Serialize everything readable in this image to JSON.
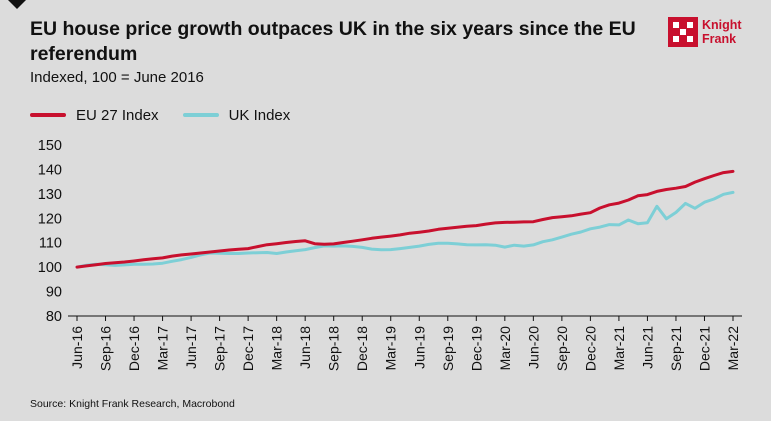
{
  "header": {
    "title": "EU house price growth outpaces UK in the six years since the EU referendum",
    "subtitle": "Indexed, 100 = June 2016"
  },
  "logo": {
    "line1": "Knight",
    "line2": "Frank",
    "color": "#c8102e"
  },
  "footer": {
    "source": "Source: Knight Frank Research, Macrobond"
  },
  "chart_data": {
    "type": "line",
    "title": "EU house price growth outpaces UK in the six years since the EU referendum",
    "subtitle": "Indexed, 100 = June 2016",
    "xlabel": "",
    "ylabel": "",
    "ylim": [
      80,
      150
    ],
    "yticks": [
      80,
      90,
      100,
      110,
      120,
      130,
      140,
      150
    ],
    "grid": false,
    "legend_position": "top-left",
    "x_tick_labels": [
      "Jun-16",
      "Sep-16",
      "Dec-16",
      "Mar-17",
      "Jun-17",
      "Sep-17",
      "Dec-17",
      "Mar-18",
      "Jun-18",
      "Sep-18",
      "Dec-18",
      "Mar-19",
      "Jun-19",
      "Sep-19",
      "Dec-19",
      "Mar-20",
      "Jun-20",
      "Sep-20",
      "Dec-20",
      "Mar-21",
      "Jun-21",
      "Sep-21",
      "Dec-21",
      "Mar-22"
    ],
    "x": [
      "Jun-16",
      "Jul-16",
      "Aug-16",
      "Sep-16",
      "Oct-16",
      "Nov-16",
      "Dec-16",
      "Jan-17",
      "Feb-17",
      "Mar-17",
      "Apr-17",
      "May-17",
      "Jun-17",
      "Jul-17",
      "Aug-17",
      "Sep-17",
      "Oct-17",
      "Nov-17",
      "Dec-17",
      "Jan-18",
      "Feb-18",
      "Mar-18",
      "Apr-18",
      "May-18",
      "Jun-18",
      "Jul-18",
      "Aug-18",
      "Sep-18",
      "Oct-18",
      "Nov-18",
      "Dec-18",
      "Jan-19",
      "Feb-19",
      "Mar-19",
      "Apr-19",
      "May-19",
      "Jun-19",
      "Jul-19",
      "Aug-19",
      "Sep-19",
      "Oct-19",
      "Nov-19",
      "Dec-19",
      "Jan-20",
      "Feb-20",
      "Mar-20",
      "Apr-20",
      "May-20",
      "Jun-20",
      "Jul-20",
      "Aug-20",
      "Sep-20",
      "Oct-20",
      "Nov-20",
      "Dec-20",
      "Jan-21",
      "Feb-21",
      "Mar-21",
      "Apr-21",
      "May-21",
      "Jun-21",
      "Jul-21",
      "Aug-21",
      "Sep-21",
      "Oct-21",
      "Nov-21",
      "Dec-21",
      "Jan-22",
      "Feb-22",
      "Mar-22"
    ],
    "series": [
      {
        "name": "EU 27 Index",
        "color": "#c8102e",
        "values": [
          100,
          100.5,
          101,
          101.5,
          101.8,
          102.1,
          102.5,
          103,
          103.4,
          103.8,
          104.5,
          105,
          105.4,
          105.8,
          106.2,
          106.6,
          107,
          107.3,
          107.6,
          108.4,
          109.2,
          109.6,
          110.1,
          110.5,
          110.8,
          109.6,
          109.4,
          109.5,
          110.1,
          110.6,
          111.2,
          111.8,
          112.3,
          112.7,
          113.2,
          113.9,
          114.3,
          114.8,
          115.5,
          115.9,
          116.3,
          116.7,
          117,
          117.6,
          118.1,
          118.3,
          118.4,
          118.5,
          118.6,
          119.5,
          120.3,
          120.6,
          121,
          121.7,
          122.3,
          124.2,
          125.5,
          126.2,
          127.5,
          129.2,
          129.7,
          131,
          131.8,
          132.3,
          133,
          134.8,
          136.2,
          137.5,
          138.7,
          139.2
        ]
      },
      {
        "name": "UK Index",
        "color": "#7dcfd6",
        "values": [
          100,
          100.8,
          101.2,
          101,
          100.7,
          100.9,
          101.2,
          101.2,
          101.3,
          101.6,
          102.4,
          103.1,
          104,
          105,
          105.8,
          105.7,
          105.6,
          105.6,
          105.8,
          105.9,
          106,
          105.6,
          106.2,
          106.7,
          107.2,
          108,
          108.7,
          108.6,
          108.7,
          108.5,
          108.1,
          107.4,
          107.1,
          107.2,
          107.6,
          108.1,
          108.6,
          109.3,
          109.8,
          109.8,
          109.5,
          109.2,
          109.1,
          109.2,
          109,
          108.2,
          109,
          108.6,
          109.1,
          110.4,
          111.2,
          112.3,
          113.5,
          114.4,
          115.7,
          116.4,
          117.4,
          117.3,
          119.3,
          117.8,
          118.2,
          124.9,
          119.8,
          122.4,
          126.1,
          124.1,
          126.6,
          127.9,
          129.8,
          130.6
        ]
      }
    ]
  }
}
